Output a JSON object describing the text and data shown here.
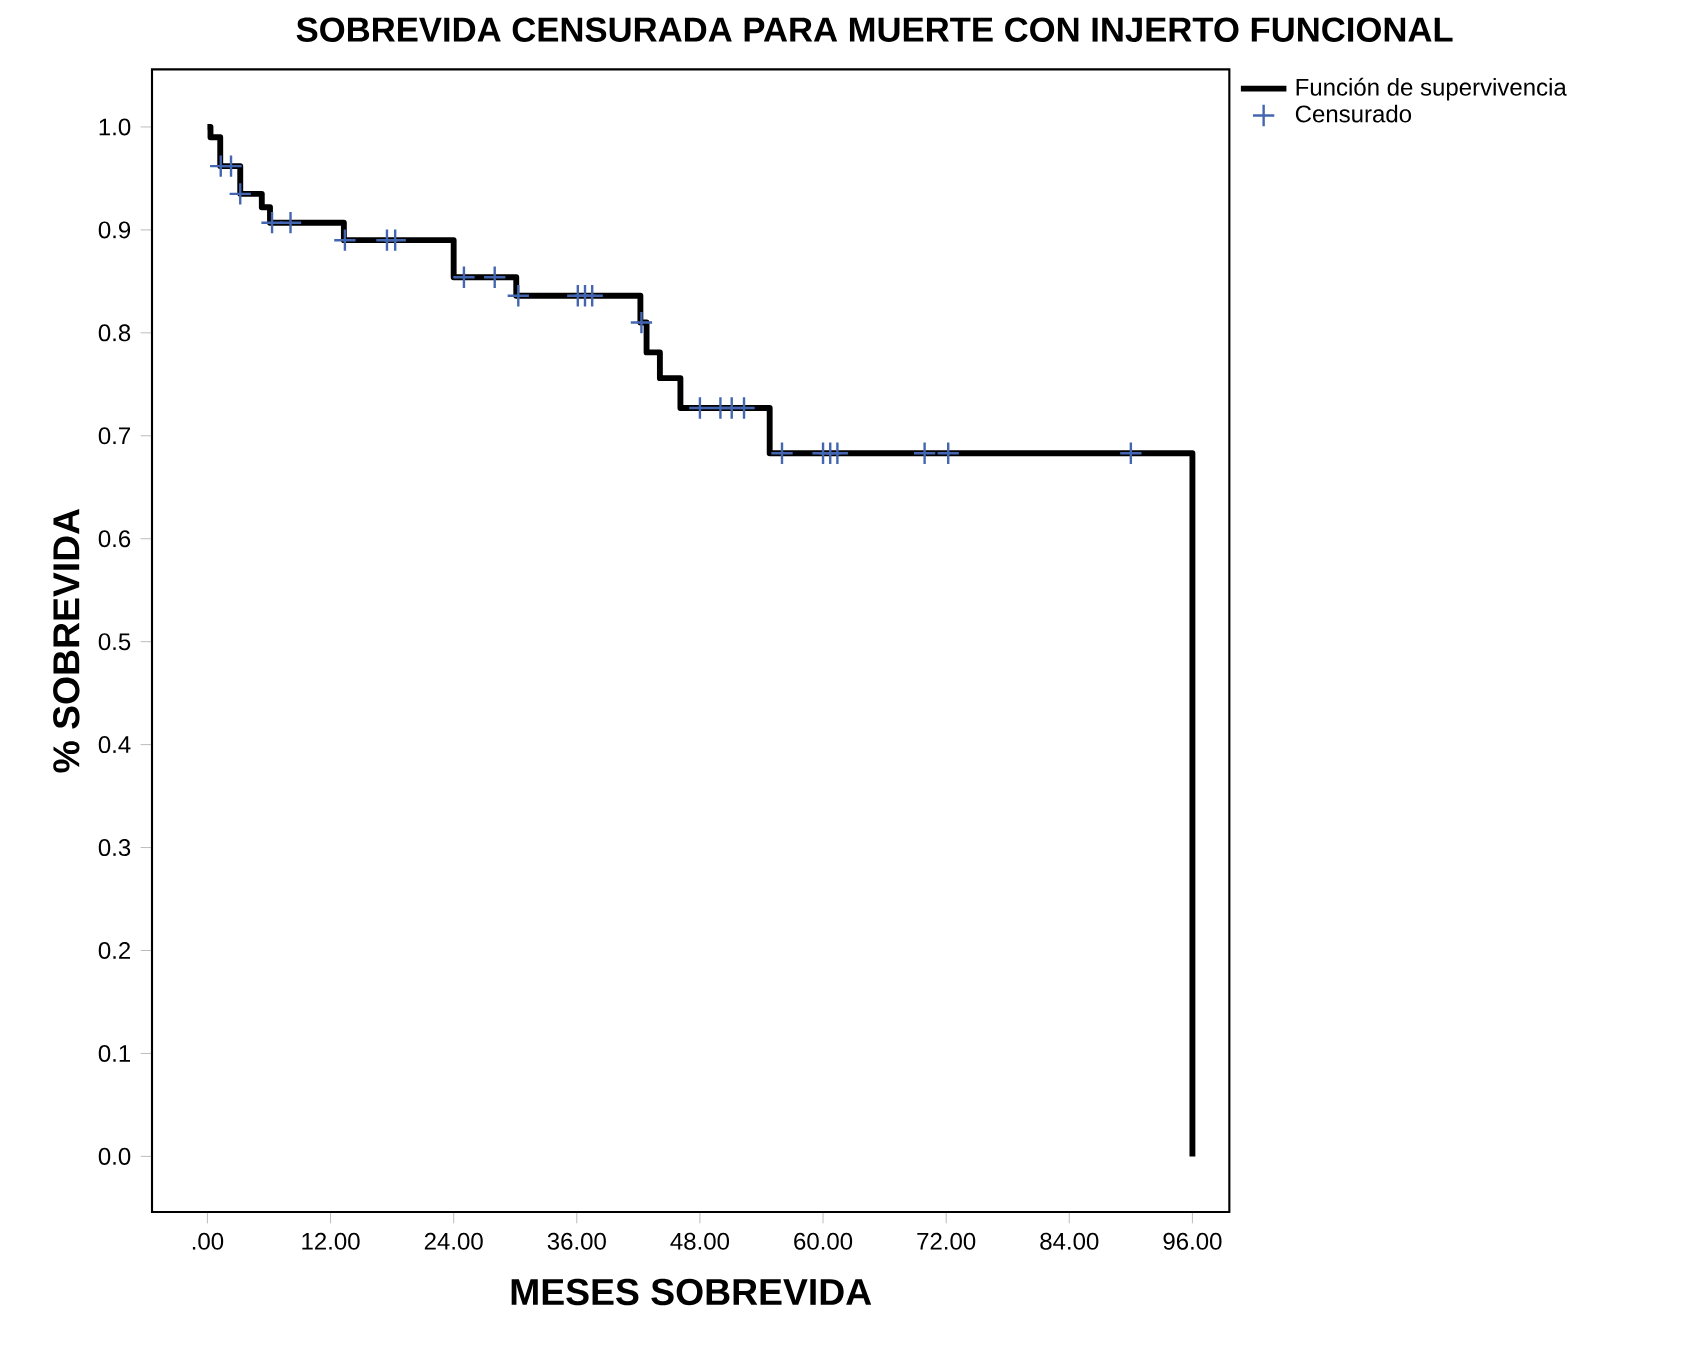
{
  "chart_data": {
    "type": "step",
    "title": "SOBREVIDA CENSURADA PARA MUERTE CON INJERTO FUNCIONAL",
    "xlabel": "MESES SOBREVIDA",
    "ylabel": "% SOBREVIDA",
    "xlim": [
      -5.4,
      99.6
    ],
    "ylim": [
      -0.054,
      1.056
    ],
    "xticks": [
      {
        "value": 0,
        "label": ".00"
      },
      {
        "value": 12,
        "label": "12.00"
      },
      {
        "value": 24,
        "label": "24.00"
      },
      {
        "value": 36,
        "label": "36.00"
      },
      {
        "value": 48,
        "label": "48.00"
      },
      {
        "value": 60,
        "label": "60.00"
      },
      {
        "value": 72,
        "label": "72.00"
      },
      {
        "value": 84,
        "label": "84.00"
      },
      {
        "value": 96,
        "label": "96.00"
      }
    ],
    "yticks": [
      {
        "value": 0,
        "label": "0.0"
      },
      {
        "value": 0.1,
        "label": "0.1"
      },
      {
        "value": 0.2,
        "label": "0.2"
      },
      {
        "value": 0.3,
        "label": "0.3"
      },
      {
        "value": 0.4,
        "label": "0.4"
      },
      {
        "value": 0.5,
        "label": "0.5"
      },
      {
        "value": 0.6,
        "label": "0.6"
      },
      {
        "value": 0.7,
        "label": "0.7"
      },
      {
        "value": 0.8,
        "label": "0.8"
      },
      {
        "value": 0.9,
        "label": "0.9"
      },
      {
        "value": 1.0,
        "label": "1.0"
      }
    ],
    "legend": "top right",
    "grid": false,
    "series": [
      {
        "name": "Función de supervivencia",
        "color": "#000000",
        "line_style": "solid",
        "x": [
          0,
          0.3,
          1.25,
          3.2,
          5.3,
          6.1,
          13.3,
          24.0,
          30.1,
          42.2,
          42.8,
          44.1,
          46.1,
          54.8,
          96.0,
          96.0
        ],
        "values": [
          1.0,
          0.99,
          0.962,
          0.935,
          0.922,
          0.907,
          0.89,
          0.854,
          0.836,
          0.81,
          0.781,
          0.756,
          0.727,
          0.683,
          0.683,
          0.0
        ]
      },
      {
        "name": "Censurado",
        "type": "scatter",
        "color": "#4466b0",
        "marker": "cross",
        "x": [
          1.3,
          2.3,
          3.2,
          6.3,
          8.1,
          13.4,
          17.5,
          18.3,
          25.0,
          28.0,
          30.3,
          36.1,
          36.8,
          37.5,
          42.3,
          48.0,
          50.0,
          51.1,
          52.3,
          56.0,
          60.0,
          60.7,
          61.4,
          69.9,
          72.2,
          90.0
        ],
        "values": [
          0.962,
          0.962,
          0.935,
          0.907,
          0.907,
          0.89,
          0.89,
          0.89,
          0.854,
          0.854,
          0.836,
          0.836,
          0.836,
          0.836,
          0.81,
          0.727,
          0.727,
          0.727,
          0.727,
          0.683,
          0.683,
          0.683,
          0.683,
          0.683,
          0.683,
          0.683
        ]
      }
    ]
  }
}
